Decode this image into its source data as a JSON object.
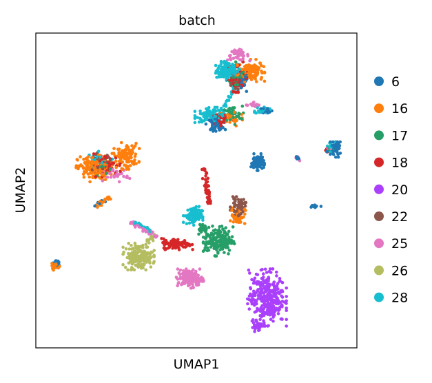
{
  "chart_data": {
    "type": "scatter",
    "title": "batch",
    "xlabel": "UMAP1",
    "ylabel": "UMAP2",
    "xlim": [
      0,
      100
    ],
    "ylim": [
      0,
      100
    ],
    "ticks": "none",
    "grid": false,
    "legend_position": "right",
    "legend": [
      {
        "label": "6",
        "color": "#1f77b4"
      },
      {
        "label": "16",
        "color": "#ff7f0e"
      },
      {
        "label": "17",
        "color": "#279e68"
      },
      {
        "label": "18",
        "color": "#d62728"
      },
      {
        "label": "20",
        "color": "#aa40fc"
      },
      {
        "label": "22",
        "color": "#8c564b"
      },
      {
        "label": "25",
        "color": "#e377c2"
      },
      {
        "label": "26",
        "color": "#b5bd61"
      },
      {
        "label": "28",
        "color": "#17becf"
      }
    ],
    "clusters": [
      {
        "batch": "28",
        "cx": 60,
        "cy": 88,
        "rx": 3.5,
        "ry": 2.5,
        "n": 120
      },
      {
        "batch": "16",
        "cx": 67,
        "cy": 88,
        "rx": 3.5,
        "ry": 3.0,
        "n": 110
      },
      {
        "batch": "18",
        "cx": 63,
        "cy": 86,
        "rx": 3.0,
        "ry": 4.0,
        "n": 60
      },
      {
        "batch": "25",
        "cx": 63,
        "cy": 93,
        "rx": 3.0,
        "ry": 1.5,
        "n": 45
      },
      {
        "batch": "17",
        "cx": 63,
        "cy": 86,
        "rx": 3.0,
        "ry": 4.0,
        "n": 35
      },
      {
        "batch": "22",
        "cx": 62,
        "cy": 84,
        "rx": 2.0,
        "ry": 2.0,
        "n": 20
      },
      {
        "batch": "6",
        "cx": 64,
        "cy": 84,
        "rx": 2.0,
        "ry": 3.0,
        "n": 25
      },
      {
        "batch": "28",
        "cx": 55,
        "cy": 74,
        "rx": 4.5,
        "ry": 2.0,
        "n": 100
      },
      {
        "batch": "6",
        "cx": 56,
        "cy": 71,
        "rx": 2.5,
        "ry": 1.8,
        "n": 45
      },
      {
        "batch": "17",
        "cx": 61,
        "cy": 74,
        "rx": 3.0,
        "ry": 2.5,
        "n": 40
      },
      {
        "batch": "16",
        "cx": 61,
        "cy": 73,
        "rx": 3.5,
        "ry": 2.5,
        "n": 35
      },
      {
        "batch": "18",
        "cx": 58,
        "cy": 73,
        "rx": 3.5,
        "ry": 2.0,
        "n": 35
      },
      {
        "batch": "25",
        "cx": 68,
        "cy": 77,
        "rx": 2.0,
        "ry": 1.0,
        "n": 15
      },
      {
        "batch": "28",
        "cx": 70.5,
        "cy": 75.5,
        "rx": 2.0,
        "ry": 1.0,
        "n": 30
      },
      {
        "batch": "6",
        "cx": 72,
        "cy": 75.5,
        "rx": 1.5,
        "ry": 0.8,
        "n": 20
      },
      {
        "batch": "16",
        "cx": 18,
        "cy": 57,
        "rx": 4.5,
        "ry": 3.5,
        "n": 160
      },
      {
        "batch": "16",
        "cx": 28,
        "cy": 61,
        "rx": 3.5,
        "ry": 3.5,
        "n": 110
      },
      {
        "batch": "18",
        "cx": 22,
        "cy": 58,
        "rx": 4.5,
        "ry": 3.0,
        "n": 60
      },
      {
        "batch": "25",
        "cx": 25,
        "cy": 55,
        "rx": 3.5,
        "ry": 2.0,
        "n": 30
      },
      {
        "batch": "22",
        "cx": 20,
        "cy": 59,
        "rx": 3.5,
        "ry": 2.5,
        "n": 25
      },
      {
        "batch": "28",
        "cx": 20,
        "cy": 60,
        "rx": 3.5,
        "ry": 2.0,
        "n": 20
      },
      {
        "batch": "17",
        "cx": 21,
        "cy": 57,
        "rx": 3.0,
        "ry": 2.0,
        "n": 15
      },
      {
        "batch": "6",
        "cx": 69,
        "cy": 59,
        "rx": 1.8,
        "ry": 2.2,
        "n": 90
      },
      {
        "batch": "6",
        "cx": 93,
        "cy": 63,
        "rx": 2.0,
        "ry": 2.0,
        "n": 60
      },
      {
        "batch": "28",
        "cx": 92,
        "cy": 64,
        "rx": 1.5,
        "ry": 1.5,
        "n": 15
      },
      {
        "batch": "17",
        "cx": 92,
        "cy": 63,
        "rx": 1.2,
        "ry": 1.2,
        "n": 10
      },
      {
        "batch": "18",
        "cx": 90.5,
        "cy": 62.5,
        "rx": 0.6,
        "ry": 0.6,
        "n": 5
      },
      {
        "batch": "25",
        "cx": 91,
        "cy": 63,
        "rx": 1.0,
        "ry": 1.0,
        "n": 6
      },
      {
        "batch": "6",
        "cx": 87,
        "cy": 45,
        "rx": 1.5,
        "ry": 0.6,
        "n": 15
      },
      {
        "batch": "22",
        "cx": 63,
        "cy": 45,
        "rx": 2.0,
        "ry": 2.5,
        "n": 50
      },
      {
        "batch": "16",
        "cx": 63,
        "cy": 42,
        "rx": 2.0,
        "ry": 2.5,
        "n": 45
      },
      {
        "batch": "28",
        "cx": 49,
        "cy": 42,
        "rx": 2.5,
        "ry": 2.5,
        "n": 90
      },
      {
        "batch": "17",
        "cx": 57,
        "cy": 34,
        "rx": 4.0,
        "ry": 4.0,
        "n": 170
      },
      {
        "batch": "17",
        "cx": 52,
        "cy": 38,
        "rx": 2.0,
        "ry": 2.0,
        "n": 30
      },
      {
        "batch": "18",
        "cx": 44,
        "cy": 33,
        "rx": 4.0,
        "ry": 1.5,
        "n": 100
      },
      {
        "batch": "26",
        "cx": 32,
        "cy": 29,
        "rx": 4.0,
        "ry": 3.5,
        "n": 170
      },
      {
        "batch": "25",
        "cx": 48,
        "cy": 22,
        "rx": 3.5,
        "ry": 2.5,
        "n": 140
      },
      {
        "batch": "20",
        "cx": 72,
        "cy": 16,
        "rx": 5.0,
        "ry": 7.5,
        "n": 340
      },
      {
        "batch": "20",
        "cx": 69,
        "cy": 7,
        "rx": 1.5,
        "ry": 2.0,
        "n": 30
      },
      {
        "batch": "16",
        "cx": 6,
        "cy": 26,
        "rx": 1.2,
        "ry": 1.2,
        "n": 20
      },
      {
        "batch": "6",
        "cx": 6,
        "cy": 27,
        "rx": 1.0,
        "ry": 0.8,
        "n": 10
      }
    ],
    "streams": [
      {
        "batch": "18",
        "x1": 52.5,
        "y1": 57,
        "x2": 54,
        "y2": 46,
        "n": 55
      },
      {
        "batch": "25",
        "x1": 29,
        "y1": 40.5,
        "x2": 38,
        "y2": 35,
        "n": 30
      },
      {
        "batch": "28",
        "x1": 31,
        "y1": 40,
        "x2": 36.5,
        "y2": 36.5,
        "n": 20
      },
      {
        "batch": "16",
        "x1": 19,
        "y1": 45,
        "x2": 23,
        "y2": 48,
        "n": 22
      },
      {
        "batch": "6",
        "x1": 18,
        "y1": 45,
        "x2": 21,
        "y2": 47,
        "n": 8
      },
      {
        "batch": "28",
        "x1": 59,
        "y1": 77,
        "x2": 62,
        "y2": 83,
        "n": 20
      },
      {
        "batch": "26",
        "x1": 34,
        "y1": 33,
        "x2": 37.5,
        "y2": 36,
        "n": 15
      },
      {
        "batch": "6",
        "x1": 81,
        "y1": 61,
        "x2": 82,
        "y2": 60,
        "n": 6
      },
      {
        "batch": "25",
        "x1": 81,
        "y1": 61,
        "x2": 82,
        "y2": 60,
        "n": 4
      }
    ]
  }
}
